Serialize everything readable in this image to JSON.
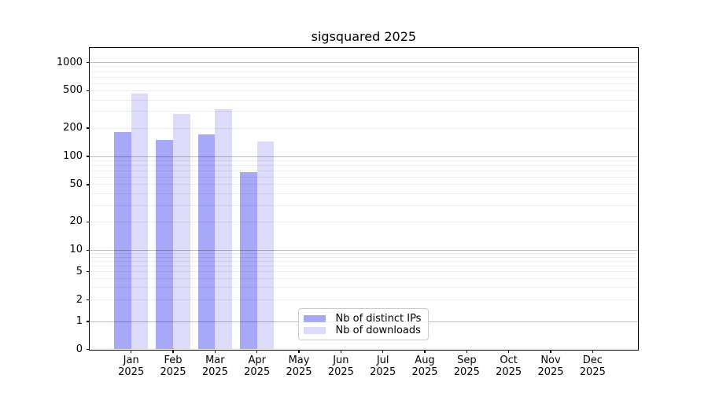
{
  "chart_data": {
    "type": "bar",
    "title": "sigsquared 2025",
    "categories": [
      "Jan",
      "Feb",
      "Mar",
      "Apr",
      "May",
      "Jun",
      "Jul",
      "Aug",
      "Sep",
      "Oct",
      "Nov",
      "Dec"
    ],
    "category_year": "2025",
    "series": [
      {
        "name": "Nb of distinct IPs",
        "color": "#a8a8f8",
        "values": [
          180,
          150,
          170,
          68,
          null,
          null,
          null,
          null,
          null,
          null,
          null,
          null
        ]
      },
      {
        "name": "Nb of downloads",
        "color": "#dcdcfa",
        "values": [
          470,
          285,
          320,
          145,
          null,
          null,
          null,
          null,
          null,
          null,
          null,
          null
        ]
      }
    ],
    "xlabel": "",
    "ylabel": "",
    "yscale": "log (decades 1-10-100-1000) with linear segment 0-1",
    "yticks": [
      1000,
      500,
      200,
      100,
      50,
      20,
      10,
      5,
      2,
      1,
      0
    ],
    "ylim": [
      0,
      1450
    ],
    "grid": "on, drawn above bars; major gridlines at decades 1/10/100/1000, minor at 2-9 multiples",
    "legend_position": "lower center-left inside axes"
  }
}
